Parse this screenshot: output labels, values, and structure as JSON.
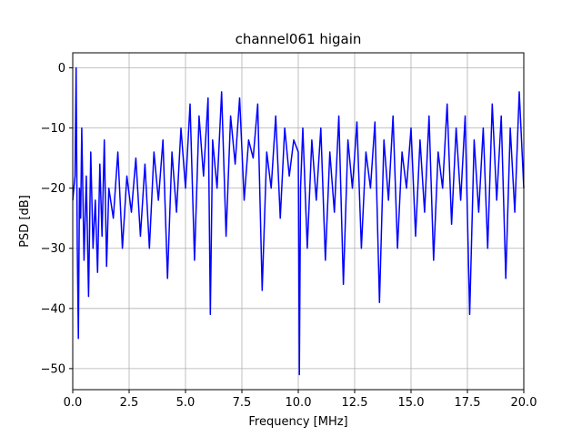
{
  "chart_data": {
    "type": "line",
    "title": "channel061 higain",
    "xlabel": "Frequency [MHz]",
    "ylabel": "PSD [dB]",
    "xlim": [
      0,
      20
    ],
    "ylim": [
      -53.5,
      2.5
    ],
    "xticks": [
      0,
      2.5,
      5,
      7.5,
      10,
      12.5,
      15,
      17.5,
      20
    ],
    "xtick_labels": [
      "0.0",
      "2.5",
      "5.0",
      "7.5",
      "10.0",
      "12.5",
      "15.0",
      "17.5",
      "20.0"
    ],
    "yticks": [
      0,
      -10,
      -20,
      -30,
      -40,
      -50
    ],
    "ytick_labels": [
      "0",
      "−10",
      "−20",
      "−30",
      "−40",
      "−50"
    ],
    "grid": true,
    "series": [
      {
        "color": "#0000ff",
        "x": [
          0.0,
          0.1,
          0.15,
          0.2,
          0.25,
          0.3,
          0.35,
          0.4,
          0.5,
          0.6,
          0.7,
          0.8,
          0.9,
          1.0,
          1.1,
          1.2,
          1.3,
          1.4,
          1.5,
          1.6,
          1.8,
          2.0,
          2.2,
          2.4,
          2.6,
          2.8,
          3.0,
          3.2,
          3.4,
          3.6,
          3.8,
          4.0,
          4.2,
          4.4,
          4.6,
          4.8,
          5.0,
          5.2,
          5.4,
          5.6,
          5.8,
          6.0,
          6.1,
          6.2,
          6.4,
          6.6,
          6.8,
          7.0,
          7.2,
          7.4,
          7.6,
          7.8,
          8.0,
          8.2,
          8.4,
          8.6,
          8.8,
          9.0,
          9.2,
          9.4,
          9.6,
          9.8,
          10.0,
          10.05,
          10.1,
          10.2,
          10.4,
          10.6,
          10.8,
          11.0,
          11.2,
          11.4,
          11.6,
          11.8,
          12.0,
          12.2,
          12.4,
          12.6,
          12.8,
          13.0,
          13.2,
          13.4,
          13.6,
          13.8,
          14.0,
          14.2,
          14.4,
          14.6,
          14.8,
          15.0,
          15.2,
          15.4,
          15.6,
          15.8,
          16.0,
          16.2,
          16.4,
          16.6,
          16.8,
          17.0,
          17.2,
          17.4,
          17.6,
          17.8,
          18.0,
          18.2,
          18.4,
          18.6,
          18.8,
          19.0,
          19.2,
          19.4,
          19.6,
          19.8,
          20.0
        ],
        "y": [
          -22,
          -18,
          0,
          -30,
          -45,
          -20,
          -25,
          -10,
          -32,
          -18,
          -38,
          -14,
          -30,
          -22,
          -34,
          -16,
          -28,
          -12,
          -33,
          -20,
          -25,
          -14,
          -30,
          -18,
          -24,
          -15,
          -28,
          -16,
          -30,
          -14,
          -22,
          -12,
          -35,
          -14,
          -24,
          -10,
          -20,
          -6,
          -32,
          -8,
          -18,
          -5,
          -41,
          -12,
          -20,
          -4,
          -28,
          -8,
          -16,
          -5,
          -22,
          -12,
          -15,
          -6,
          -37,
          -14,
          -20,
          -8,
          -25,
          -10,
          -18,
          -12,
          -14,
          -51,
          -20,
          -10,
          -30,
          -12,
          -22,
          -10,
          -32,
          -14,
          -24,
          -8,
          -36,
          -12,
          -20,
          -9,
          -30,
          -14,
          -20,
          -9,
          -39,
          -12,
          -22,
          -8,
          -30,
          -14,
          -20,
          -10,
          -28,
          -12,
          -24,
          -8,
          -32,
          -14,
          -20,
          -6,
          -26,
          -10,
          -22,
          -8,
          -41,
          -12,
          -24,
          -10,
          -30,
          -6,
          -22,
          -8,
          -35,
          -10,
          -24,
          -4,
          -20
        ]
      }
    ]
  }
}
